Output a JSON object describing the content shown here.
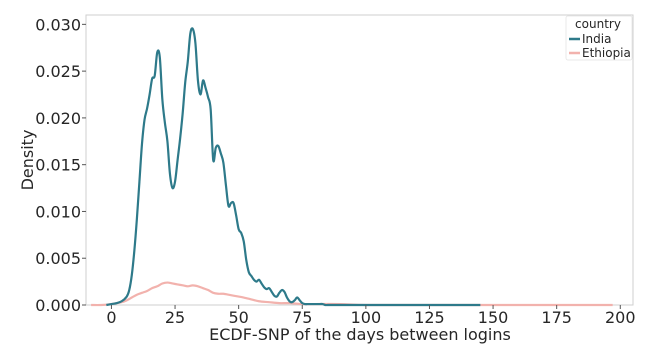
{
  "chart_data": {
    "type": "line",
    "xlabel": "ECDF-SNP of the days between logins",
    "ylabel": "Density",
    "xlim": [
      -10,
      205
    ],
    "ylim": [
      0,
      0.031
    ],
    "x_ticks": [
      0,
      25,
      50,
      75,
      100,
      125,
      150,
      175,
      200
    ],
    "x_tick_labels": [
      "0",
      "25",
      "50",
      "75",
      "100",
      "125",
      "150",
      "175",
      "200"
    ],
    "y_ticks": [
      0.0,
      0.005,
      0.01,
      0.015,
      0.02,
      0.025,
      0.03
    ],
    "y_tick_labels": [
      "0.000",
      "0.005",
      "0.010",
      "0.015",
      "0.020",
      "0.025",
      "0.030"
    ],
    "grid": false,
    "legend": {
      "title": "country",
      "position": "top-right",
      "entries": [
        {
          "name": "India",
          "color": "#2e7a8a"
        },
        {
          "name": "Ethiopia",
          "color": "#f2b2ad"
        }
      ]
    },
    "series": [
      {
        "name": "India",
        "color": "#2e7a8a",
        "x": [
          -2,
          0,
          2,
          4,
          6,
          7,
          8,
          9,
          10,
          11,
          12,
          13,
          14,
          15,
          16,
          17,
          18,
          19,
          20,
          21,
          22,
          23,
          24,
          25,
          26,
          27,
          28,
          29,
          30,
          31,
          32,
          33,
          34,
          35,
          36,
          37,
          38,
          39,
          40,
          41,
          42,
          43,
          44,
          45,
          46,
          47,
          48,
          49,
          50,
          51,
          52,
          53,
          54,
          55,
          56,
          57,
          58,
          59,
          60,
          61,
          62,
          63,
          64,
          65,
          66,
          67,
          68,
          69,
          70,
          71,
          72,
          73,
          74,
          75,
          76,
          77,
          78,
          79,
          80,
          81,
          82,
          83,
          84,
          85,
          86,
          88,
          90,
          92,
          94,
          95,
          97,
          100,
          110,
          125,
          130,
          140,
          145
        ],
        "y": [
          0.0,
          0.0001,
          0.0002,
          0.0004,
          0.0009,
          0.0016,
          0.0032,
          0.0058,
          0.0092,
          0.0132,
          0.0172,
          0.0198,
          0.021,
          0.0225,
          0.0242,
          0.0245,
          0.027,
          0.0265,
          0.022,
          0.0195,
          0.0175,
          0.014,
          0.0125,
          0.0132,
          0.0155,
          0.0178,
          0.0205,
          0.0238,
          0.026,
          0.029,
          0.0295,
          0.028,
          0.024,
          0.0225,
          0.024,
          0.0232,
          0.0222,
          0.0209,
          0.0155,
          0.0168,
          0.017,
          0.0162,
          0.0152,
          0.0128,
          0.0106,
          0.0109,
          0.0109,
          0.0096,
          0.0081,
          0.0077,
          0.0068,
          0.0048,
          0.0035,
          0.0031,
          0.0027,
          0.0025,
          0.0027,
          0.0023,
          0.0019,
          0.0017,
          0.0018,
          0.0014,
          0.001,
          0.0009,
          0.0013,
          0.0016,
          0.0014,
          0.0008,
          0.0004,
          0.0003,
          0.0005,
          0.0008,
          0.0005,
          0.0002,
          0.0001,
          0.0001,
          0.0001,
          0.0001,
          0.0001,
          0.0001,
          0.0001,
          0.0001,
          0.0,
          0.0,
          0.0,
          0.0,
          0.0,
          0.0,
          0.0,
          0.0,
          0.0,
          0.0,
          0.0,
          0.0,
          0.0,
          0.0,
          0.0
        ]
      },
      {
        "name": "Ethiopia",
        "color": "#f2b2ad",
        "x": [
          -8,
          -4,
          0,
          4,
          6,
          8,
          10,
          12,
          14,
          16,
          18,
          20,
          22,
          24,
          26,
          28,
          30,
          32,
          34,
          36,
          38,
          40,
          42,
          44,
          46,
          48,
          50,
          52,
          55,
          58,
          62,
          66,
          70,
          75,
          80,
          90,
          100,
          120,
          150,
          175,
          197
        ],
        "y": [
          0.0,
          0.0,
          0.0001,
          0.0003,
          0.0005,
          0.0008,
          0.0011,
          0.0013,
          0.0015,
          0.0018,
          0.002,
          0.0023,
          0.0024,
          0.0023,
          0.0022,
          0.0021,
          0.002,
          0.0021,
          0.002,
          0.0018,
          0.0016,
          0.0013,
          0.0012,
          0.0012,
          0.0011,
          0.001,
          0.0009,
          0.0008,
          0.0006,
          0.0004,
          0.0003,
          0.0002,
          0.0002,
          0.0001,
          0.0001,
          0.0001,
          0.0,
          0.0,
          0.0,
          0.0,
          0.0
        ]
      }
    ]
  }
}
